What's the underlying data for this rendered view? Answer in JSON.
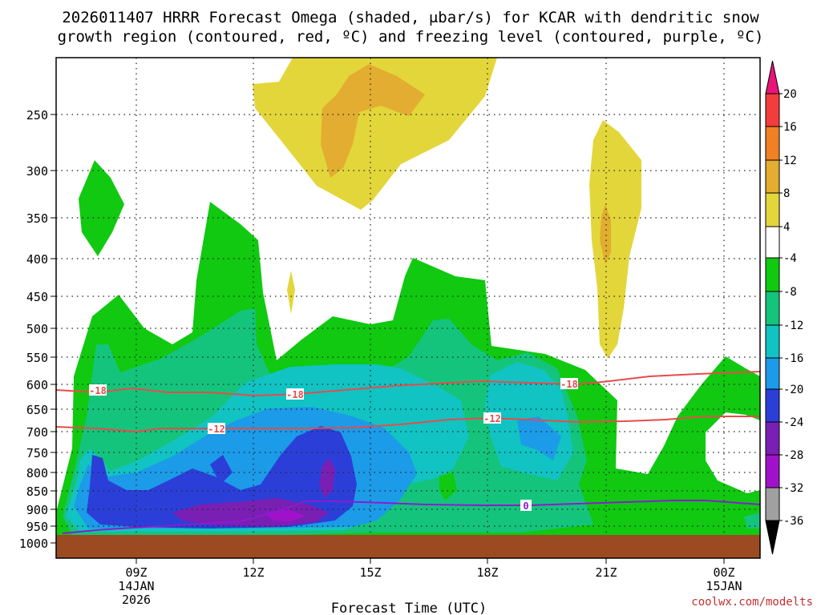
{
  "chart_data": {
    "type": "heatmap",
    "title_line1": "2026011407 HRRR Forecast Omega (shaded, μbar/s) for KCAR with dendritic snow",
    "title_line2": "growth region (contoured, red, ºC) and freezing level (contoured, purple, ºC)",
    "xlabel": "Forecast Time (UTC)",
    "credit": "coolwx.com/modelts",
    "y_ticks": [
      "250",
      "300",
      "350",
      "400",
      "450",
      "500",
      "550",
      "600",
      "650",
      "700",
      "750",
      "800",
      "850",
      "900",
      "950",
      "1000"
    ],
    "x_ticks": [
      {
        "label": "09Z",
        "sub1": "14JAN",
        "sub2": "2026"
      },
      {
        "label": "12Z",
        "sub1": "",
        "sub2": ""
      },
      {
        "label": "15Z",
        "sub1": "",
        "sub2": ""
      },
      {
        "label": "18Z",
        "sub1": "",
        "sub2": ""
      },
      {
        "label": "21Z",
        "sub1": "",
        "sub2": ""
      },
      {
        "label": "00Z",
        "sub1": "15JAN",
        "sub2": ""
      }
    ],
    "colorbar": {
      "labels": [
        "20",
        "16",
        "12",
        "8",
        "4",
        "-4",
        "-8",
        "-12",
        "-16",
        "-20",
        "-24",
        "-28",
        "-32",
        "-36"
      ],
      "colors": [
        "#f33c3c",
        "#ef8023",
        "#e2ad30",
        "#e3d63a",
        "#ffffff",
        "#10c910",
        "#14c47c",
        "#11c3c3",
        "#1b9be8",
        "#2b3fd8",
        "#7a1fb4",
        "#a012c9",
        "#a0a0a0"
      ],
      "top_arrow_color": "#e8147a",
      "bottom_arrow_color": "#000000"
    },
    "contours": [
      {
        "name": "dendritic-top",
        "label": "-18",
        "color": "#e84b4b",
        "kind": "dendritic"
      },
      {
        "name": "dendritic-bottom",
        "label": "-12",
        "color": "#e84b4b",
        "kind": "dendritic"
      },
      {
        "name": "freezing-level",
        "label": "0",
        "color": "#8b1bd0",
        "kind": "freezing"
      }
    ]
  }
}
